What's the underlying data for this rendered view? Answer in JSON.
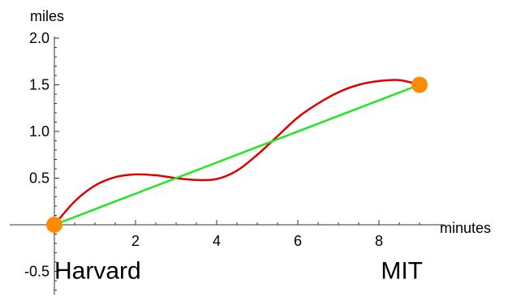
{
  "chart_data": {
    "type": "line",
    "xlabel": "minutes",
    "ylabel": "miles",
    "xlim": [
      -1.1,
      9.6
    ],
    "ylim": [
      -0.75,
      2.02
    ],
    "x_ticks": [
      2,
      4,
      6,
      8
    ],
    "y_ticks": [
      -0.5,
      0.5,
      1.0,
      1.5,
      2.0
    ],
    "y_tick_labels": [
      "-0.5",
      "0.5",
      "1.0",
      "1.5",
      "2.0"
    ],
    "grid": false,
    "series": [
      {
        "color": "#e00000",
        "x": [
          0,
          0.5,
          1,
          1.5,
          2,
          2.5,
          3,
          3.5,
          4,
          4.5,
          5,
          5.5,
          6,
          6.5,
          7,
          7.5,
          8,
          8.5,
          9
        ],
        "y": [
          0,
          0.25,
          0.42,
          0.51,
          0.54,
          0.53,
          0.5,
          0.48,
          0.49,
          0.58,
          0.75,
          0.95,
          1.15,
          1.3,
          1.42,
          1.5,
          1.54,
          1.55,
          1.5
        ]
      },
      {
        "color": "#22e622",
        "x": [
          0,
          9
        ],
        "y": [
          0,
          1.5
        ]
      }
    ],
    "endpoints": [
      {
        "x": 0,
        "y": 0,
        "color": "#ff8c00"
      },
      {
        "x": 9,
        "y": 1.5,
        "color": "#ff8c00"
      }
    ],
    "annotations": [
      {
        "text": "Harvard",
        "x": 0,
        "y": -0.5,
        "anchor": "start"
      },
      {
        "text": "MIT",
        "x": 9,
        "y": -0.5,
        "anchor": "end"
      }
    ]
  }
}
